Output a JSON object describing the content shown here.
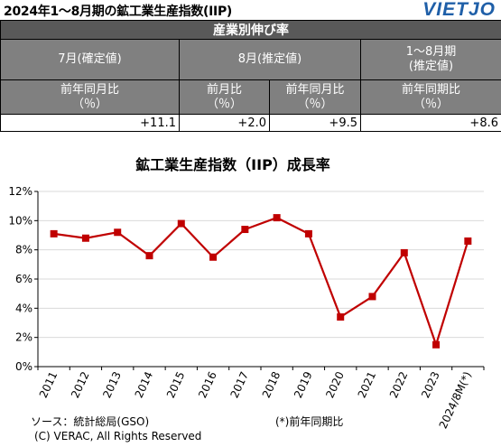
{
  "header": {
    "title": "2024年1〜8月期の鉱工業生産指数(IIP)",
    "logo": "VIETJO"
  },
  "table": {
    "caption": "産業別伸び率",
    "groups": [
      "7月(確定値)",
      "8月(推定値)",
      "1〜8月期\n(推定値)"
    ],
    "subheaders": [
      "前年同月比\n（％）",
      "前月比\n（％）",
      "前年同月比\n（％）",
      "前年同期比\n（％）"
    ],
    "values": [
      "+11.1",
      "+2.0",
      "+9.5",
      "+8.6"
    ]
  },
  "chart_data": {
    "type": "line",
    "title": "鉱工業生産指数（IIP）成長率",
    "categories": [
      "2011",
      "2012",
      "2013",
      "2014",
      "2015",
      "2016",
      "2017",
      "2018",
      "2019",
      "2020",
      "2021",
      "2022",
      "2023",
      "2024/8M(*)"
    ],
    "values": [
      9.1,
      8.8,
      9.2,
      7.6,
      9.8,
      7.5,
      9.4,
      10.2,
      9.1,
      3.4,
      4.8,
      7.8,
      1.5,
      8.6
    ],
    "ylim": [
      0,
      12
    ],
    "yticks": [
      "0%",
      "2%",
      "4%",
      "6%",
      "8%",
      "10%",
      "12%"
    ],
    "grid": true,
    "color": "#c00000"
  },
  "footer": {
    "source": "ソース：統計総局(GSO)",
    "note": "(*)前年同期比",
    "copyright": "(C) VERAC, All Rights Reserved"
  }
}
